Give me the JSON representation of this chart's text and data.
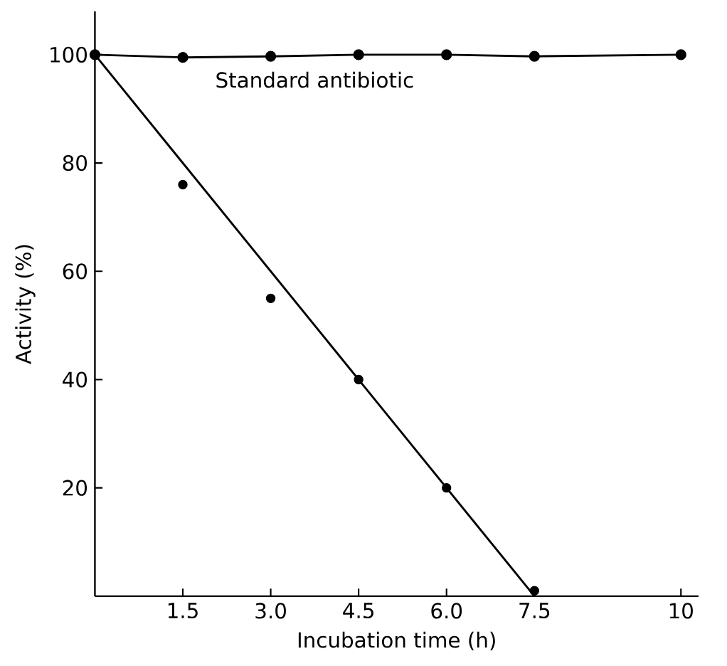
{
  "chart_data": {
    "type": "line",
    "xlabel": "Incubation time (h)",
    "ylabel": "Activity (%)",
    "xlim": [
      0,
      10.3
    ],
    "ylim": [
      0,
      108
    ],
    "xticks": [
      1.5,
      {
        "value": 3.0,
        "label": "3.0"
      },
      4.5,
      {
        "value": 6.0,
        "label": "6.0"
      },
      7.5,
      10
    ],
    "yticks": [
      20,
      40,
      60,
      80,
      100
    ],
    "series": [
      {
        "name": "Standard antibiotic",
        "marker": "circle",
        "color": "#000000",
        "x": [
          0,
          1.5,
          3.0,
          4.5,
          6.0,
          7.5,
          10
        ],
        "values": [
          100,
          99.5,
          99.7,
          100,
          100,
          99.7,
          100
        ]
      },
      {
        "type": "scatter",
        "marker": "circle",
        "color": "#000000",
        "x": [
          1.5,
          3.0,
          4.5,
          6.0,
          7.5
        ],
        "values": [
          76,
          55,
          40,
          20,
          1
        ]
      },
      {
        "marker": "none",
        "color": "#000000",
        "x": [
          0,
          7.5
        ],
        "values": [
          100,
          0
        ]
      }
    ]
  }
}
